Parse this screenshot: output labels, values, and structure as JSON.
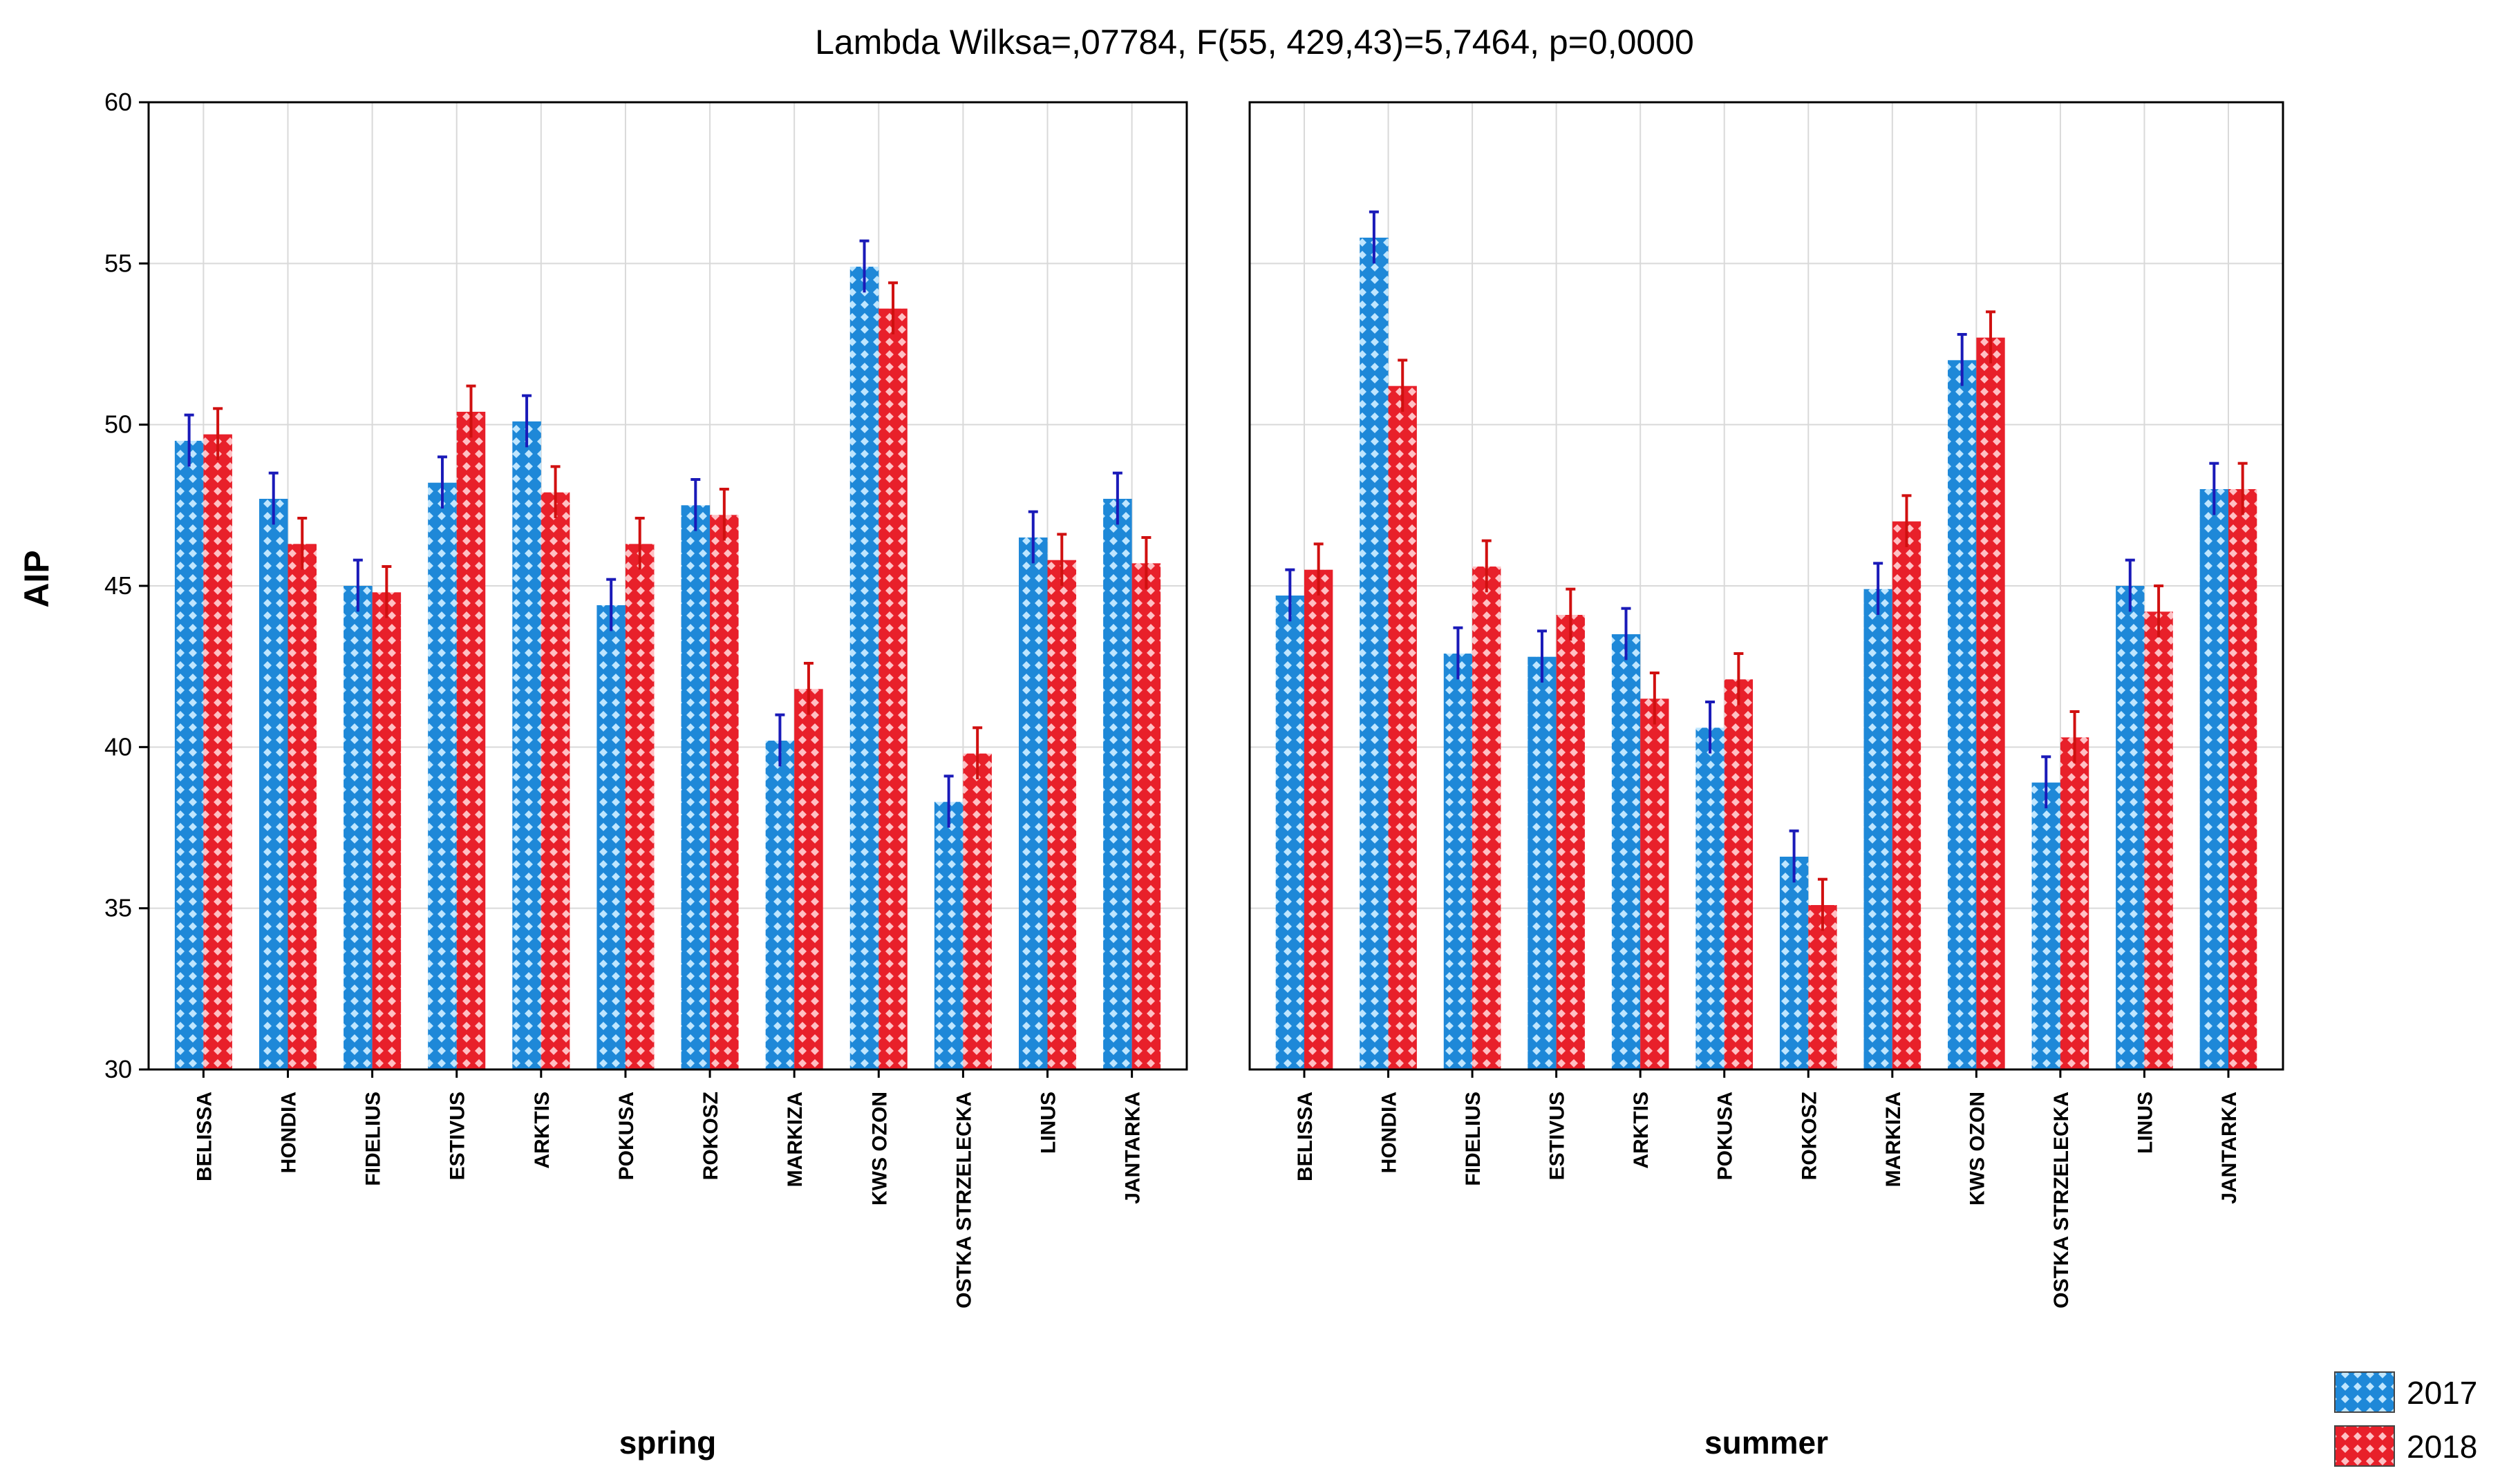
{
  "chart_data": {
    "type": "bar",
    "title": "Lambda Wilksa=,07784, F(55, 429,43)=5,7464, p=0,0000",
    "ylabel": "AIP",
    "ylim": [
      30,
      60
    ],
    "yticks": [
      30,
      35,
      40,
      45,
      50,
      55,
      60
    ],
    "grid": true,
    "legend_position": "bottom-right",
    "categories": [
      "BELISSA",
      "HONDIA",
      "FIDELIUS",
      "ESTIVUS",
      "ARKTIS",
      "POKUSA",
      "ROKOSZ",
      "MARKIZA",
      "KWS OZON",
      "OSTKA STRZELECKA",
      "LINUS",
      "JANTARKA"
    ],
    "colors": {
      "2017": "#1e88d8",
      "2018": "#e8202a"
    },
    "panels": [
      {
        "name": "spring",
        "series": [
          {
            "name": "2017",
            "values": [
              49.5,
              47.7,
              45.0,
              48.2,
              50.1,
              44.4,
              47.5,
              40.2,
              54.9,
              38.3,
              46.5,
              47.7
            ],
            "errors": [
              0.8,
              0.8,
              0.8,
              0.8,
              0.8,
              0.8,
              0.8,
              0.8,
              0.8,
              0.8,
              0.8,
              0.8
            ]
          },
          {
            "name": "2018",
            "values": [
              49.7,
              46.3,
              44.8,
              50.4,
              47.9,
              46.3,
              47.2,
              41.8,
              53.6,
              39.8,
              45.8,
              45.7
            ],
            "errors": [
              0.8,
              0.8,
              0.8,
              0.8,
              0.8,
              0.8,
              0.8,
              0.8,
              0.8,
              0.8,
              0.8,
              0.8
            ]
          }
        ]
      },
      {
        "name": "summer",
        "series": [
          {
            "name": "2017",
            "values": [
              44.7,
              55.8,
              42.9,
              42.8,
              43.5,
              40.6,
              36.6,
              44.9,
              52.0,
              38.9,
              45.0,
              48.0
            ],
            "errors": [
              0.8,
              0.8,
              0.8,
              0.8,
              0.8,
              0.8,
              0.8,
              0.8,
              0.8,
              0.8,
              0.8,
              0.8
            ]
          },
          {
            "name": "2018",
            "values": [
              45.5,
              51.2,
              45.6,
              44.1,
              41.5,
              42.1,
              35.1,
              47.0,
              52.7,
              40.3,
              44.2,
              48.0
            ],
            "errors": [
              0.8,
              0.8,
              0.8,
              0.8,
              0.8,
              0.8,
              0.8,
              0.8,
              0.8,
              0.8,
              0.8,
              0.8
            ]
          }
        ]
      }
    ]
  }
}
